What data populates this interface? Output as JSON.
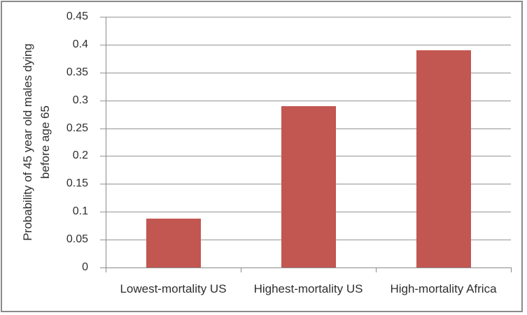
{
  "chart_data": {
    "type": "bar",
    "title": "",
    "categories": [
      "Lowest-mortality US",
      "Highest-mortality US",
      "High-mortality Africa"
    ],
    "values": [
      0.088,
      0.29,
      0.39
    ],
    "ylabel": "Probability of 45 year old males dying before age 65",
    "ylabel_lines": [
      "Probability of 45 year old males dying",
      "before age 65"
    ],
    "xlabel": "",
    "ylim": [
      0,
      0.45
    ],
    "ytick_step": 0.05,
    "ytick_labels": [
      "0",
      "0.05",
      "0.1",
      "0.15",
      "0.2",
      "0.25",
      "0.3",
      "0.35",
      "0.4",
      "0.45"
    ],
    "grid": true,
    "legend": "none",
    "colors": {
      "bar": "#c25651",
      "gridline": "#949494",
      "axis": "#8a8a8a",
      "text": "#2e2e2e",
      "frame_border": "#8a8a8a",
      "background": "#ffffff"
    }
  }
}
